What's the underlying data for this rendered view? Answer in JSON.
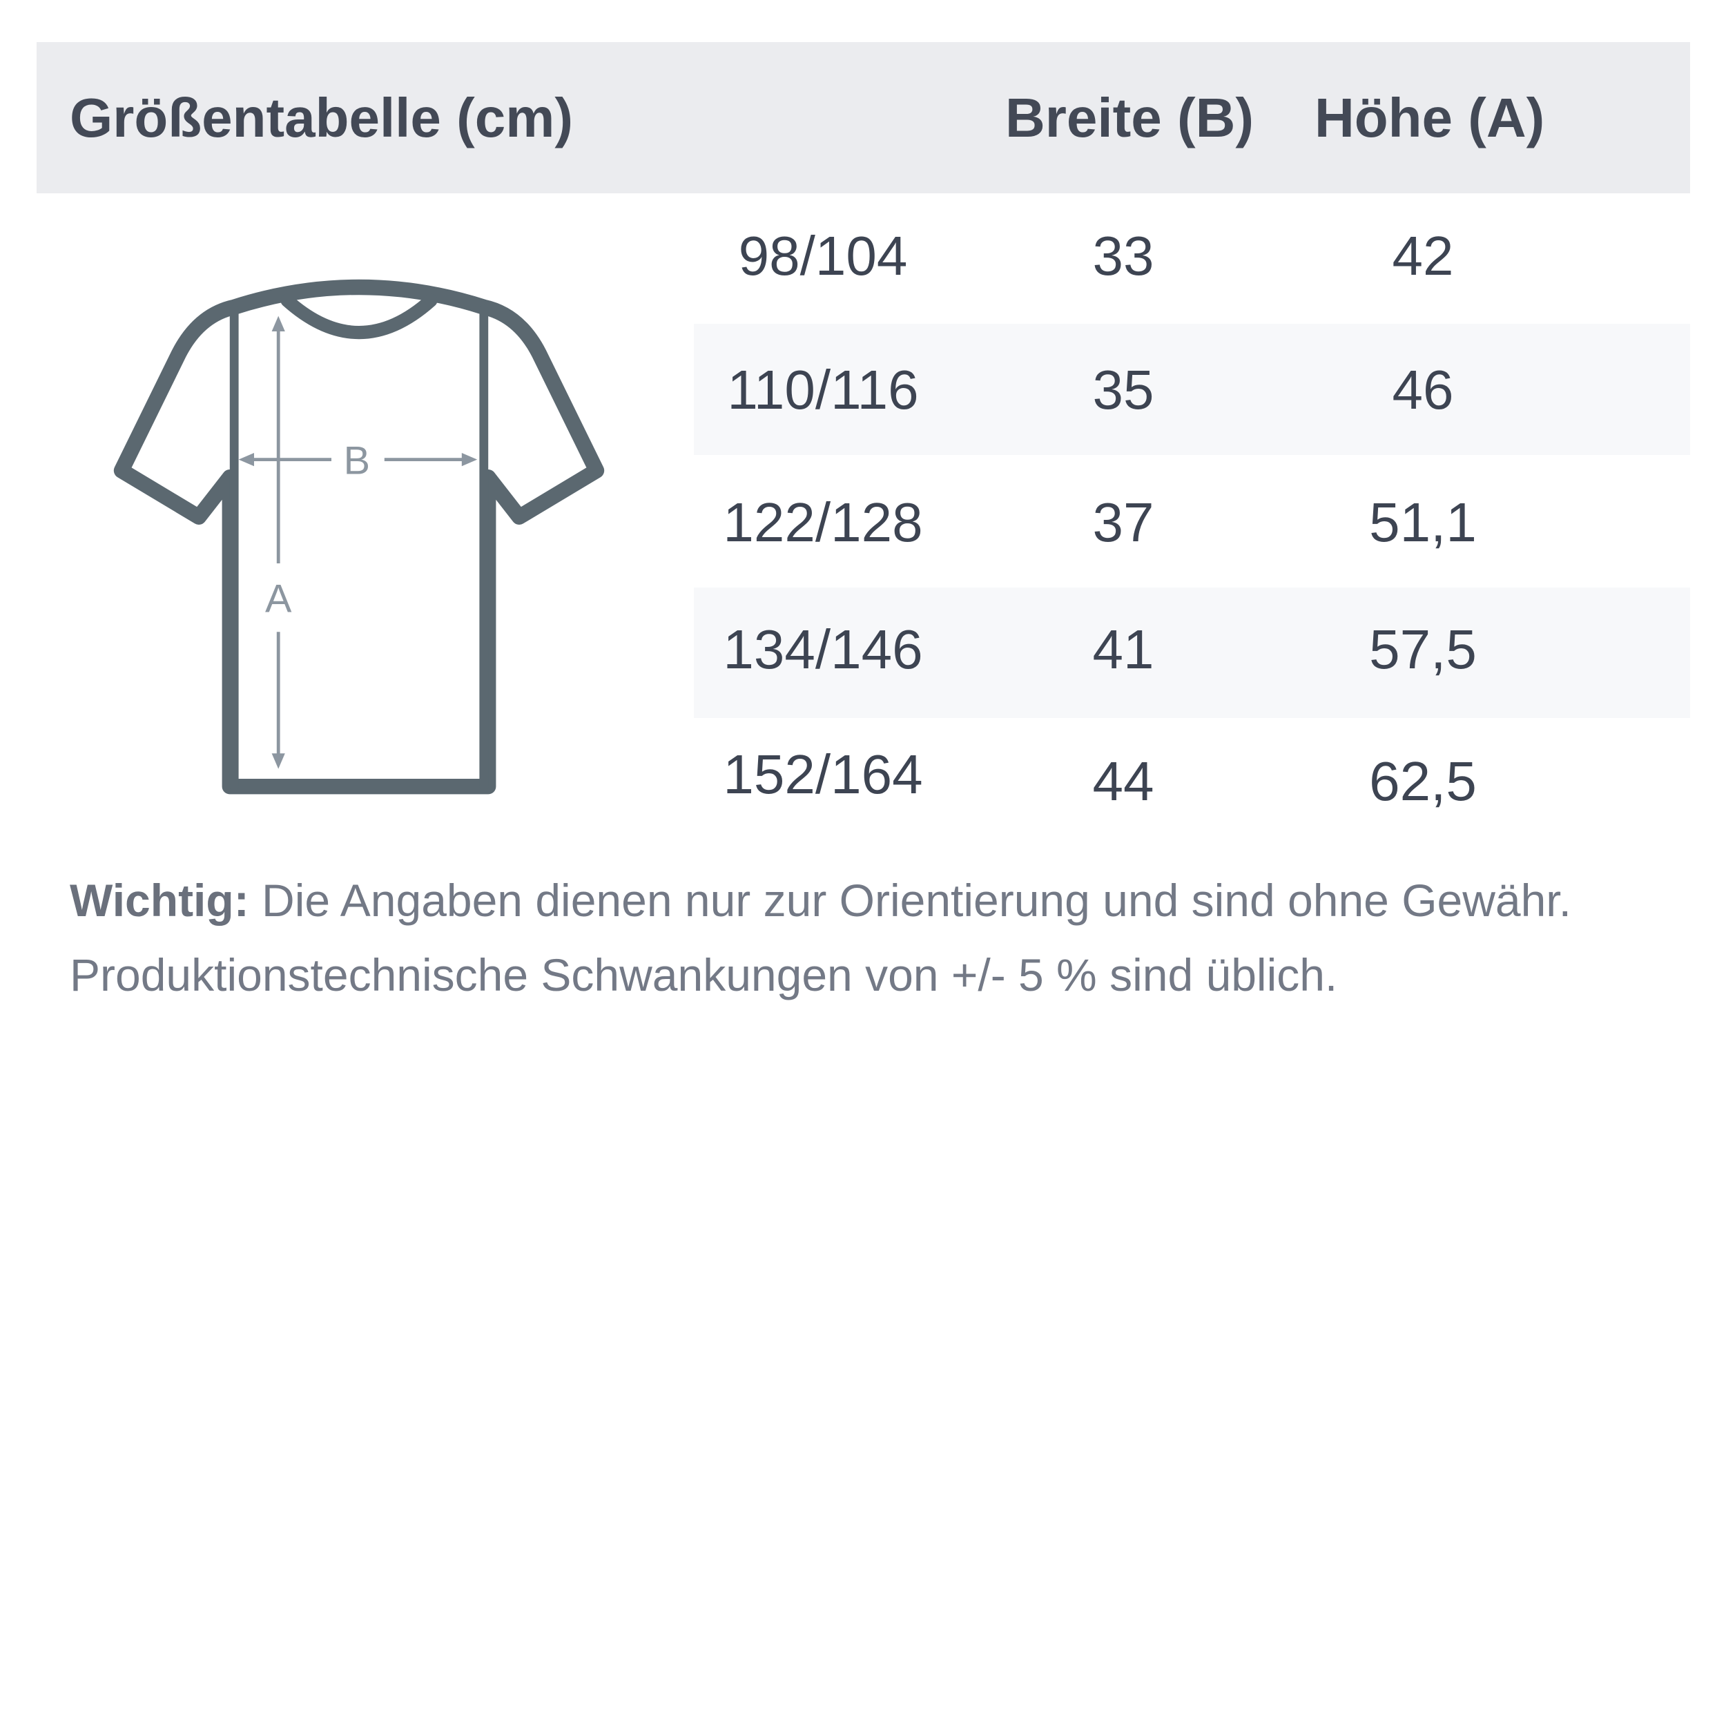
{
  "header": {
    "title": "Größentabelle (cm)",
    "col_width": "Breite (B)",
    "col_height": "Höhe (A)"
  },
  "diagram": {
    "label_b": "B",
    "label_a": "A"
  },
  "rows": [
    {
      "size": "98/104",
      "width": "33",
      "height": "42"
    },
    {
      "size": "110/116",
      "width": "35",
      "height": "46"
    },
    {
      "size": "122/128",
      "width": "37",
      "height": "51,1"
    },
    {
      "size": "134/146",
      "width": "41",
      "height": "57,5"
    },
    {
      "size": "152/164",
      "width": "44",
      "height": "62,5"
    }
  ],
  "note": {
    "label": "Wichtig:",
    "line1": "Die Angaben dienen nur zur Orientierung und sind ohne Gewähr.",
    "line2": "Produktionstechnische Schwankungen von +/- 5 % sind üblich."
  },
  "colors": {
    "header_bg": "#ebecef",
    "shirt": "#5b6870",
    "arrow": "#8c96a0"
  }
}
